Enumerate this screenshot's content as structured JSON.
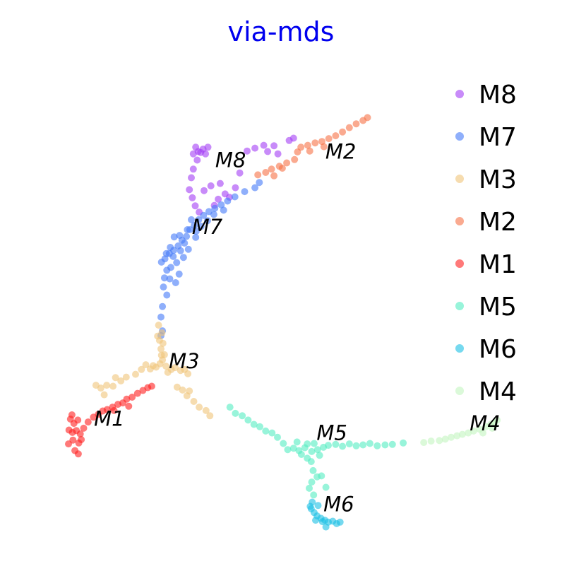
{
  "chart_data": {
    "type": "scatter",
    "title": "via-mds",
    "title_color": "#0000ee",
    "xlabel": "",
    "ylabel": "",
    "grid": false,
    "axes_visible": false,
    "legend_position": "right",
    "xlim": [
      0,
      100
    ],
    "ylim": [
      0,
      100
    ],
    "series": [
      {
        "name": "M8",
        "color": "#a33ef5",
        "label_point": [
          36.5,
          80.5
        ],
        "points": [
          [
            32.0,
            83.3
          ],
          [
            33.0,
            83.8
          ],
          [
            34.0,
            84.3
          ],
          [
            35.0,
            84.7
          ],
          [
            32.5,
            84.7
          ],
          [
            34.5,
            83.3
          ],
          [
            33.5,
            83.6
          ],
          [
            32.8,
            82.0
          ],
          [
            32.0,
            80.1
          ],
          [
            31.6,
            78.3
          ],
          [
            31.2,
            75.8
          ],
          [
            31.8,
            74.1
          ],
          [
            32.4,
            72.4
          ],
          [
            33.2,
            71.1
          ],
          [
            34.2,
            75.6
          ],
          [
            35.6,
            76.6
          ],
          [
            37.5,
            77.1
          ],
          [
            38.5,
            74.9
          ],
          [
            39.4,
            74.2
          ],
          [
            40.6,
            76.2
          ],
          [
            41.5,
            79.3
          ],
          [
            43.0,
            83.9
          ],
          [
            44.6,
            84.5
          ],
          [
            46.4,
            85.1
          ],
          [
            48.5,
            85.0
          ],
          [
            51.6,
            86.1
          ],
          [
            52.5,
            86.6
          ],
          [
            49.3,
            83.3
          ],
          [
            47.2,
            83.8
          ],
          [
            36.3,
            72.5
          ],
          [
            37.1,
            73.8
          ]
        ]
      },
      {
        "name": "M7",
        "color": "#4479f8",
        "label_point": [
          31.7,
          66.5
        ],
        "points": [
          [
            25.5,
            60.6
          ],
          [
            26.2,
            61.3
          ],
          [
            27.1,
            62.4
          ],
          [
            28.0,
            63.1
          ],
          [
            28.9,
            64.0
          ],
          [
            29.7,
            65.2
          ],
          [
            30.6,
            66.0
          ],
          [
            31.3,
            67.4
          ],
          [
            32.2,
            68.3
          ],
          [
            33.1,
            69.5
          ],
          [
            34.1,
            70.4
          ],
          [
            35.2,
            71.2
          ],
          [
            36.4,
            71.9
          ],
          [
            37.7,
            72.6
          ],
          [
            39.0,
            73.4
          ],
          [
            40.5,
            74.3
          ],
          [
            26.6,
            58.9
          ],
          [
            27.4,
            59.5
          ],
          [
            28.6,
            60.5
          ],
          [
            29.1,
            58.1
          ],
          [
            26.1,
            57.3
          ],
          [
            27.2,
            57.1
          ],
          [
            30.0,
            61.6
          ],
          [
            31.0,
            63.3
          ],
          [
            32.5,
            65.8
          ],
          [
            27.3,
            63.7
          ],
          [
            28.1,
            65.9
          ],
          [
            25.9,
            55.4
          ],
          [
            26.6,
            53.7
          ],
          [
            25.7,
            51.3
          ],
          [
            25.4,
            49.1
          ],
          [
            25.7,
            46.2
          ],
          [
            25.4,
            45.2
          ],
          [
            27.9,
            61.8
          ],
          [
            29.4,
            63.0
          ],
          [
            30.2,
            64.6
          ],
          [
            32.6,
            67.1
          ],
          [
            33.6,
            68.1
          ],
          [
            34.9,
            69.3
          ],
          [
            36.2,
            70.6
          ],
          [
            38.2,
            71.5
          ],
          [
            31.6,
            69.5
          ],
          [
            30.8,
            67.4
          ],
          [
            29.2,
            66.2
          ],
          [
            26.5,
            62.4
          ],
          [
            28.4,
            56.3
          ],
          [
            42.5,
            75.4
          ],
          [
            45.5,
            77.3
          ],
          [
            44.6,
            76.2
          ]
        ]
      },
      {
        "name": "M3",
        "color": "#f0c47a",
        "label_point": [
          27.0,
          38.4
        ],
        "points": [
          [
            22.3,
            39.1
          ],
          [
            23.2,
            38.2
          ],
          [
            24.4,
            38.6
          ],
          [
            25.2,
            39.3
          ],
          [
            26.4,
            38.8
          ],
          [
            27.5,
            38.1
          ],
          [
            28.3,
            38.5
          ],
          [
            29.4,
            37.9
          ],
          [
            30.2,
            38.1
          ],
          [
            26.8,
            37.5
          ],
          [
            25.7,
            40.1
          ],
          [
            26.1,
            41.2
          ],
          [
            25.4,
            42.4
          ],
          [
            25.8,
            43.6
          ],
          [
            25.1,
            44.2
          ],
          [
            24.7,
            45.1
          ],
          [
            25.6,
            45.8
          ],
          [
            24.9,
            47.4
          ],
          [
            21.4,
            38.1
          ],
          [
            20.2,
            37.1
          ],
          [
            18.3,
            36.5
          ],
          [
            17.2,
            35.7
          ],
          [
            16.1,
            36.4
          ],
          [
            15.6,
            34.6
          ],
          [
            14.3,
            34.8
          ],
          [
            13.1,
            34.2
          ],
          [
            12.1,
            34.8
          ],
          [
            13.8,
            32.8
          ],
          [
            29.8,
            33.8
          ],
          [
            30.7,
            32.6
          ],
          [
            32.1,
            31.4
          ],
          [
            33.2,
            30.2
          ],
          [
            34.6,
            29.5
          ],
          [
            35.4,
            28.4
          ],
          [
            31.2,
            33.6
          ],
          [
            28.7,
            34.4
          ],
          [
            25.5,
            41.1
          ],
          [
            23.8,
            38.9
          ],
          [
            30.9,
            37.2
          ]
        ]
      },
      {
        "name": "M2",
        "color": "#f67246",
        "label_point": [
          59.0,
          82.3
        ],
        "points": [
          [
            54.0,
            84.7
          ],
          [
            55.4,
            85.1
          ],
          [
            56.9,
            85.6
          ],
          [
            58.3,
            85.9
          ],
          [
            59.7,
            86.5
          ],
          [
            61.1,
            87.1
          ],
          [
            62.5,
            87.9
          ],
          [
            63.9,
            88.8
          ],
          [
            65.3,
            89.6
          ],
          [
            66.7,
            90.3
          ],
          [
            67.6,
            90.9
          ],
          [
            52.7,
            82.1
          ],
          [
            51.1,
            81.4
          ],
          [
            49.6,
            80.7
          ],
          [
            48.0,
            80.1
          ],
          [
            46.8,
            79.4
          ],
          [
            45.2,
            78.9
          ],
          [
            53.3,
            83.7
          ],
          [
            55.8,
            83.9
          ],
          [
            58.7,
            84.8
          ],
          [
            50.2,
            80.3
          ],
          [
            48.5,
            78.7
          ]
        ]
      },
      {
        "name": "M1",
        "color": "#ff1f1f",
        "label_point": [
          11.7,
          26.3
        ],
        "points": [
          [
            6.6,
            25.4
          ],
          [
            7.3,
            24.9
          ],
          [
            8.1,
            25.3
          ],
          [
            7.6,
            26.8
          ],
          [
            8.4,
            27.5
          ],
          [
            6.9,
            27.7
          ],
          [
            7.4,
            23.3
          ],
          [
            8.6,
            22.7
          ],
          [
            9.1,
            23.4
          ],
          [
            6.5,
            22.5
          ],
          [
            7.8,
            21.1
          ],
          [
            8.5,
            20.4
          ],
          [
            8.9,
            24.6
          ],
          [
            9.6,
            25.8
          ],
          [
            7.2,
            28.6
          ],
          [
            10.5,
            27.1
          ],
          [
            11.6,
            28.1
          ],
          [
            12.6,
            28.7
          ],
          [
            13.5,
            29.4
          ],
          [
            14.4,
            29.7
          ],
          [
            15.5,
            30.2
          ],
          [
            16.6,
            30.8
          ],
          [
            17.6,
            31.1
          ],
          [
            18.4,
            31.9
          ],
          [
            19.5,
            32.3
          ],
          [
            20.6,
            33.1
          ],
          [
            21.7,
            33.7
          ],
          [
            22.7,
            34.3
          ],
          [
            23.5,
            34.6
          ],
          [
            15.8,
            29.5
          ],
          [
            18.8,
            30.4
          ]
        ]
      },
      {
        "name": "M5",
        "color": "#54ecc1",
        "label_point": [
          57.2,
          23.3
        ],
        "points": [
          [
            51.3,
            21.3
          ],
          [
            52.5,
            21.6
          ],
          [
            53.6,
            21.1
          ],
          [
            54.8,
            21.7
          ],
          [
            56.2,
            20.9
          ],
          [
            57.4,
            21.3
          ],
          [
            58.6,
            21.8
          ],
          [
            55.3,
            22.5
          ],
          [
            54.1,
            20.3
          ],
          [
            57.8,
            20.1
          ],
          [
            56.7,
            22.6
          ],
          [
            53.2,
            22.9
          ],
          [
            50.4,
            22.6
          ],
          [
            49.2,
            23.9
          ],
          [
            48.1,
            24.8
          ],
          [
            46.8,
            25.2
          ],
          [
            45.6,
            26.1
          ],
          [
            44.4,
            26.6
          ],
          [
            43.2,
            27.5
          ],
          [
            42.0,
            28.4
          ],
          [
            40.6,
            28.9
          ],
          [
            39.5,
            30.2
          ],
          [
            59.6,
            22.2
          ],
          [
            61.1,
            22.4
          ],
          [
            62.5,
            22.0
          ],
          [
            63.9,
            22.5
          ],
          [
            65.3,
            22.1
          ],
          [
            66.7,
            22.3
          ],
          [
            68.1,
            22.6
          ],
          [
            69.6,
            22.1
          ],
          [
            71.2,
            22.3
          ],
          [
            72.7,
            22.4
          ],
          [
            74.9,
            22.7
          ],
          [
            56.1,
            18.8
          ],
          [
            56.5,
            16.9
          ],
          [
            57.3,
            15.6
          ],
          [
            56.2,
            14.5
          ],
          [
            55.7,
            13.2
          ],
          [
            56.6,
            11.8
          ],
          [
            58.2,
            15.8
          ],
          [
            59.1,
            13.4
          ],
          [
            55.3,
            19.5
          ]
        ]
      },
      {
        "name": "M6",
        "color": "#1bbfe4",
        "label_point": [
          58.6,
          8.4
        ],
        "points": [
          [
            56.1,
            8.9
          ],
          [
            56.7,
            8.1
          ],
          [
            57.3,
            7.4
          ],
          [
            58.1,
            6.9
          ],
          [
            58.9,
            6.5
          ],
          [
            59.6,
            6.1
          ],
          [
            60.5,
            6.3
          ],
          [
            61.3,
            5.8
          ],
          [
            62.0,
            6.1
          ],
          [
            59.1,
            5.1
          ],
          [
            58.4,
            6.2
          ],
          [
            57.5,
            9.6
          ],
          [
            56.3,
            10.3
          ],
          [
            55.9,
            9.4
          ],
          [
            57.0,
            6.5
          ]
        ]
      },
      {
        "name": "M4",
        "color": "#c3f5c0",
        "label_point": [
          88.5,
          25.3
        ],
        "points": [
          [
            82.3,
            23.2
          ],
          [
            83.5,
            23.5
          ],
          [
            84.7,
            23.9
          ],
          [
            85.9,
            24.2
          ],
          [
            87.0,
            24.5
          ],
          [
            88.2,
            24.8
          ],
          [
            89.3,
            25.2
          ],
          [
            90.5,
            25.6
          ],
          [
            91.8,
            26.1
          ],
          [
            92.8,
            26.6
          ],
          [
            93.6,
            26.9
          ],
          [
            94.1,
            27.5
          ],
          [
            80.6,
            23.1
          ],
          [
            79.1,
            22.8
          ],
          [
            91.2,
            24.8
          ],
          [
            93.1,
            25.8
          ]
        ]
      }
    ]
  }
}
